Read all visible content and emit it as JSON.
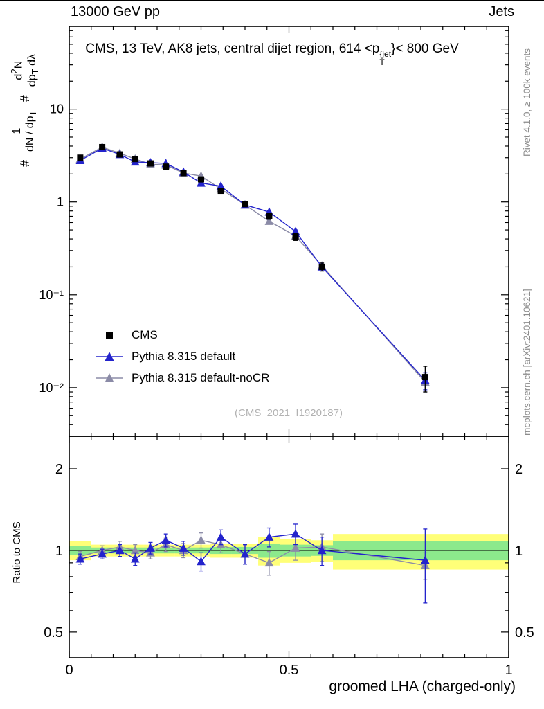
{
  "header": {
    "left": "13000 GeV pp",
    "right": "Jets"
  },
  "title": {
    "pre": "CMS, 13 TeV, AK8 jets, central dijet region, 614 <p",
    "sup": "{jet",
    "sub": "T",
    "post": "}< 800 GeV"
  },
  "ylabel": {
    "hash1": "#",
    "f1num": "1",
    "f1den_a": "dN / dp",
    "f1den_sub": "T",
    "hash2": "#",
    "f2num_a": "d",
    "f2num_sup": "2",
    "f2num_b": "N",
    "f2den_a": "dp",
    "f2den_sub": "T",
    "f2den_b": " dλ"
  },
  "ratio_ylabel": "Ratio to CMS",
  "xlabel": "groomed LHA (charged-only)",
  "watermark": "(CMS_2021_I1920187)",
  "side_notes": {
    "top_right": "Rivet 4.1.0, ≥ 100k events",
    "bottom_right": "mcplots.cern.ch [arXiv:2401.10621]"
  },
  "legend": [
    {
      "label": "CMS",
      "marker": "square",
      "color": "#000000",
      "line": false
    },
    {
      "label": "Pythia 8.315 default",
      "marker": "triangle",
      "color": "#2323cc",
      "line": true
    },
    {
      "label": "Pythia 8.315 default-noCR",
      "marker": "triangle",
      "color": "#8b8ba7",
      "line": true
    }
  ],
  "chart_data": {
    "type": "line",
    "title": "CMS, 13 TeV, AK8 jets, central dijet region, 614 <p^{jet}_T < 800 GeV",
    "xlabel": "groomed LHA (charged-only)",
    "ylabel": "# 1/(dN/dp_T) # d²N/(dp_T dλ)",
    "ratio_ylabel": "Ratio to CMS",
    "x": [
      0.025,
      0.075,
      0.115,
      0.15,
      0.185,
      0.22,
      0.26,
      0.3,
      0.345,
      0.4,
      0.455,
      0.515,
      0.575,
      0.81
    ],
    "series": [
      {
        "name": "CMS",
        "marker": "square",
        "color": "#000000",
        "line": false,
        "values": [
          3.0,
          3.9,
          3.25,
          2.9,
          2.6,
          2.4,
          2.05,
          1.75,
          1.32,
          0.95,
          0.7,
          0.42,
          0.2,
          0.013
        ],
        "yerr": [
          0.18,
          0.18,
          0.15,
          0.13,
          0.12,
          0.1,
          0.09,
          0.08,
          0.07,
          0.06,
          0.05,
          0.035,
          0.02,
          0.004
        ]
      },
      {
        "name": "Pythia 8.315 default",
        "marker": "triangle",
        "color": "#2323cc",
        "line": true,
        "values": [
          2.8,
          3.8,
          3.25,
          2.7,
          2.65,
          2.6,
          2.1,
          1.6,
          1.48,
          0.93,
          0.78,
          0.48,
          0.2,
          0.012
        ],
        "yerr": [
          0.07,
          0.08,
          0.07,
          0.06,
          0.06,
          0.05,
          0.05,
          0.04,
          0.04,
          0.03,
          0.03,
          0.02,
          0.012,
          0.0025
        ]
      },
      {
        "name": "Pythia 8.315 default-noCR",
        "marker": "triangle",
        "color": "#8b8ba7",
        "line": true,
        "values": [
          2.9,
          3.9,
          3.35,
          2.9,
          2.55,
          2.5,
          2.05,
          1.9,
          1.38,
          0.93,
          0.62,
          0.43,
          0.205,
          0.0115
        ],
        "yerr": [
          0.07,
          0.08,
          0.07,
          0.06,
          0.06,
          0.05,
          0.05,
          0.04,
          0.04,
          0.03,
          0.03,
          0.02,
          0.012,
          0.0025
        ]
      }
    ],
    "main_axis": {
      "ylog": true,
      "ymin": 0.003,
      "ymax": 78,
      "yticks": [
        {
          "v": 0.01,
          "label": "10⁻²"
        },
        {
          "v": 0.1,
          "label": "10⁻¹"
        },
        {
          "v": 1,
          "label": "1"
        },
        {
          "v": 10,
          "label": "10"
        }
      ],
      "xmin": 0,
      "xmax": 1,
      "xticks": [
        {
          "v": 0,
          "label": "0"
        },
        {
          "v": 0.5,
          "label": "0.5"
        },
        {
          "v": 1,
          "label": "1"
        }
      ],
      "x_minor_step": 0.05
    },
    "ratio_axis": {
      "ylog": true,
      "ymin": 0.402,
      "ymax": 2.636,
      "yticks": [
        {
          "v": 0.5,
          "label": "0.5"
        },
        {
          "v": 1,
          "label": "1"
        },
        {
          "v": 2,
          "label": "2"
        }
      ],
      "yminor": [
        0.6,
        0.7,
        0.8,
        0.9
      ]
    },
    "ratio": {
      "reference": 1.0,
      "bins": [
        [
          0,
          0.05
        ],
        [
          0.05,
          0.1
        ],
        [
          0.1,
          0.13
        ],
        [
          0.13,
          0.17
        ],
        [
          0.17,
          0.2
        ],
        [
          0.2,
          0.24
        ],
        [
          0.24,
          0.28
        ],
        [
          0.28,
          0.32
        ],
        [
          0.32,
          0.37
        ],
        [
          0.37,
          0.43
        ],
        [
          0.43,
          0.48
        ],
        [
          0.48,
          0.55
        ],
        [
          0.55,
          0.6
        ],
        [
          0.6,
          1.0
        ]
      ],
      "yellow": [
        0.08,
        0.05,
        0.05,
        0.05,
        0.05,
        0.05,
        0.05,
        0.05,
        0.06,
        0.06,
        0.12,
        0.1,
        0.09,
        0.15
      ],
      "green": [
        0.04,
        0.025,
        0.025,
        0.025,
        0.025,
        0.025,
        0.025,
        0.025,
        0.03,
        0.03,
        0.06,
        0.05,
        0.045,
        0.08
      ],
      "series": [
        {
          "name": "Pythia 8.315 default",
          "marker": "triangle",
          "color": "#2323cc",
          "line": true,
          "values": [
            0.93,
            0.97,
            1.0,
            0.93,
            1.02,
            1.09,
            1.02,
            0.91,
            1.12,
            0.97,
            1.12,
            1.15,
            1.0,
            0.92
          ],
          "yerr": [
            0.04,
            0.04,
            0.05,
            0.05,
            0.05,
            0.06,
            0.06,
            0.07,
            0.07,
            0.08,
            0.09,
            0.1,
            0.12,
            0.28
          ]
        },
        {
          "name": "Pythia 8.315 default-noCR",
          "marker": "triangle",
          "color": "#8b8ba7",
          "line": true,
          "values": [
            0.95,
            1.0,
            1.03,
            1.0,
            0.98,
            1.05,
            1.0,
            1.09,
            1.05,
            0.97,
            0.9,
            1.02,
            1.03,
            0.88
          ],
          "yerr": [
            0.04,
            0.04,
            0.05,
            0.05,
            0.05,
            0.06,
            0.06,
            0.07,
            0.07,
            0.08,
            0.09,
            0.1,
            0.12,
            0.1
          ]
        }
      ]
    },
    "colors": {
      "band_yellow": "#ffff78",
      "band_green": "#8ce98c",
      "ref_line": "#000000"
    }
  }
}
